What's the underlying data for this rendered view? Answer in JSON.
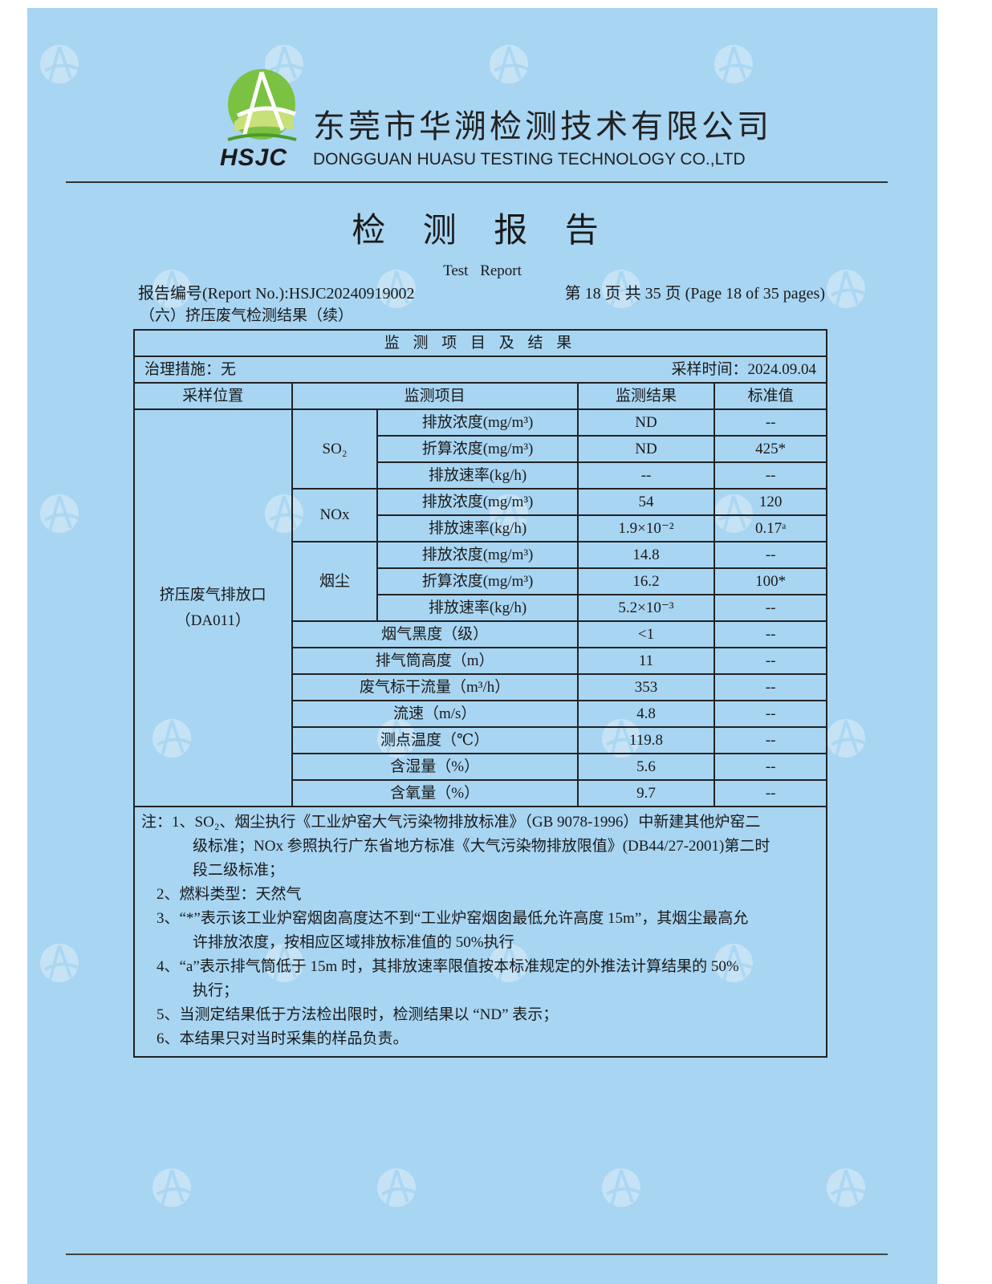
{
  "company": {
    "name_cn": "东莞市华溯检测技术有限公司",
    "name_en": "DONGGUAN HUASU TESTING TECHNOLOGY CO.,LTD",
    "logo_text": "HSJC"
  },
  "watermark": {
    "cn": "东莞市华溯检测技术有限公司",
    "en": "DONGGUAN HUASU TESTING TECHNOLOGY CO.,LTD"
  },
  "header": {
    "title": "检 测 报 告",
    "subtitle": "Test Report",
    "report_no": "报告编号(Report No.):HSJC20240919002",
    "page_info": "第 18 页  共 35 页  (Page 18 of 35 pages)"
  },
  "section_title": "（六）挤压废气检测结果（续）",
  "table": {
    "caption": "监 测 项 目 及 结 果",
    "treatment": "治理措施：无",
    "sampling_time": "采样时间：2024.09.04",
    "columns": [
      "采样位置",
      "监测项目",
      "监测结果",
      "标准值"
    ],
    "location": "挤压废气排放口\n（DA011）",
    "groups": [
      {
        "pollutant": "SO₂",
        "rows": [
          {
            "item": "排放浓度(mg/m³)",
            "result": "ND",
            "standard": "--"
          },
          {
            "item": "折算浓度(mg/m³)",
            "result": "ND",
            "standard": "425*"
          },
          {
            "item": "排放速率(kg/h)",
            "result": "--",
            "standard": "--"
          }
        ]
      },
      {
        "pollutant": "NOx",
        "rows": [
          {
            "item": "排放浓度(mg/m³)",
            "result": "54",
            "standard": "120"
          },
          {
            "item": "排放速率(kg/h)",
            "result": "1.9×10⁻²",
            "standard": "0.17ᵃ"
          }
        ]
      },
      {
        "pollutant": "烟尘",
        "rows": [
          {
            "item": "排放浓度(mg/m³)",
            "result": "14.8",
            "standard": "--"
          },
          {
            "item": "折算浓度(mg/m³)",
            "result": "16.2",
            "standard": "100*"
          },
          {
            "item": "排放速率(kg/h)",
            "result": "5.2×10⁻³",
            "standard": "--"
          }
        ]
      }
    ],
    "params": [
      {
        "item": "烟气黑度（级）",
        "result": "<1",
        "standard": "--"
      },
      {
        "item": "排气筒高度（m）",
        "result": "11",
        "standard": "--"
      },
      {
        "item": "废气标干流量（m³/h）",
        "result": "353",
        "standard": "--"
      },
      {
        "item": "流速（m/s）",
        "result": "4.8",
        "standard": "--"
      },
      {
        "item": "测点温度（℃）",
        "result": "119.8",
        "standard": "--"
      },
      {
        "item": "含湿量（%）",
        "result": "5.6",
        "standard": "--"
      },
      {
        "item": "含氧量（%）",
        "result": "9.7",
        "standard": "--"
      }
    ]
  },
  "notes": [
    {
      "text": "注：1、SO₂、烟尘执行《工业炉窑大气污染物排放标准》（GB 9078-1996）中新建其他炉窑二",
      "indent": false
    },
    {
      "text": "级标准；NOx 参照执行广东省地方标准《大气污染物排放限值》(DB44/27-2001)第二时",
      "indent": true
    },
    {
      "text": "段二级标准；",
      "indent": true
    },
    {
      "text": "    2、燃料类型：天然气",
      "indent": false
    },
    {
      "text": "    3、“*”表示该工业炉窑烟囱高度达不到“工业炉窑烟囱最低允许高度 15m”，其烟尘最高允",
      "indent": false
    },
    {
      "text": "许排放浓度，按相应区域排放标准值的 50%执行",
      "indent": true
    },
    {
      "text": "    4、“a”表示排气筒低于 15m 时，其排放速率限值按本标准规定的外推法计算结果的 50%",
      "indent": false
    },
    {
      "text": "执行；",
      "indent": true
    },
    {
      "text": "    5、当测定结果低于方法检出限时，检测结果以 “ND” 表示；",
      "indent": false
    },
    {
      "text": "    6、本结果只对当时采集的样品负责。",
      "indent": false
    }
  ],
  "colors": {
    "paper": "#a8d5f2",
    "logo_green": "#7cc242",
    "logo_light": "#c8e07a"
  }
}
